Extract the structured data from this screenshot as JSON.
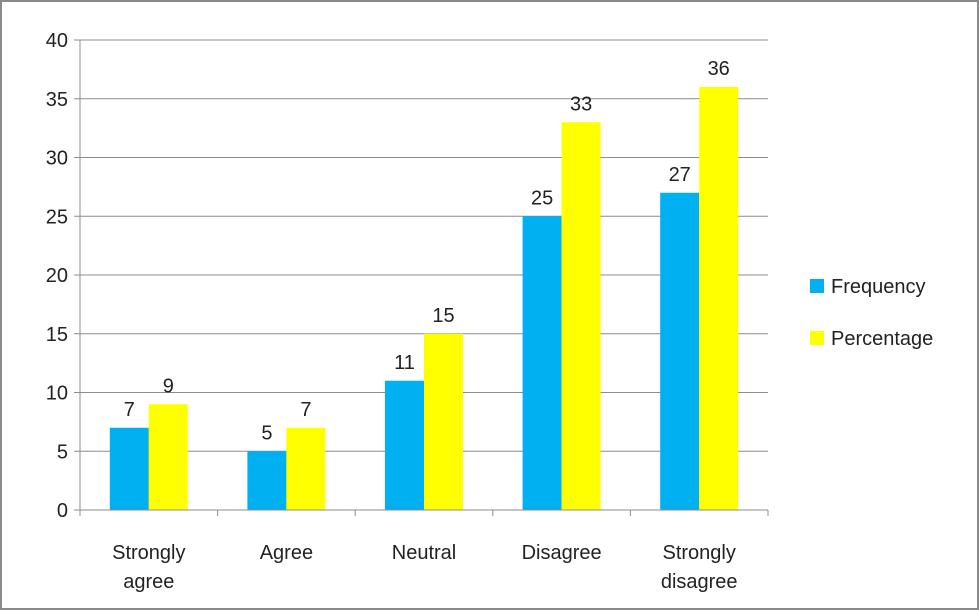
{
  "chart_data": {
    "type": "bar",
    "categories": [
      [
        "Strongly",
        "agree"
      ],
      [
        "Agree"
      ],
      [
        "Neutral"
      ],
      [
        "Disagree"
      ],
      [
        "Strongly",
        "disagree"
      ]
    ],
    "series": [
      {
        "name": "Frequency",
        "color": "#00b0f0",
        "values": [
          7,
          5,
          11,
          25,
          27
        ]
      },
      {
        "name": "Percentage",
        "color": "#ffff00",
        "values": [
          9,
          7,
          15,
          33,
          36
        ]
      }
    ],
    "ylim": [
      0,
      40
    ],
    "yticks": [
      0,
      5,
      10,
      15,
      20,
      25,
      30,
      35,
      40
    ],
    "grid": true,
    "legend_position": "right",
    "title": "",
    "xlabel": "",
    "ylabel": ""
  }
}
